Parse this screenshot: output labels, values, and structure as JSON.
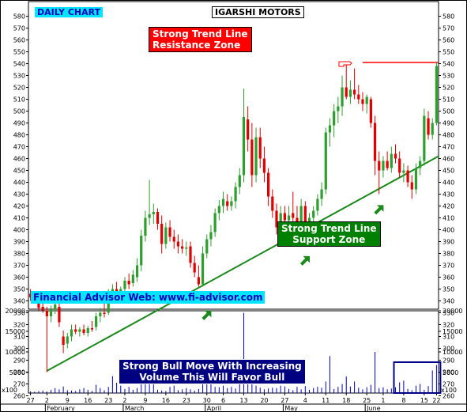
{
  "labels": {
    "daily_chart": "DAILY CHART",
    "title": "IGARSHI MOTORS",
    "resistance": "Strong Trend Line\nResistance Zone",
    "support": "Strong Trend Line\nSupport Zone",
    "website": "Financial Advisor Web: www.fi-advisor.com",
    "volume_note": "Strong Bull Move With Increasing\nVolume This Will Favor Bull",
    "volume_scale": "x100"
  },
  "colors": {
    "up": "#2e9e2e",
    "down": "#e00000",
    "trendline": "#1a8a1a",
    "resistance_line": "#ff0000",
    "volume": "#0000cc",
    "volume_box": "#00008b",
    "arrow": "#1a8a1a"
  },
  "chart_data": [
    {
      "type": "candlestick",
      "title": "IGARSHI MOTORS",
      "ylim": [
        255,
        580
      ],
      "y_ticks": [
        260,
        270,
        280,
        290,
        300,
        310,
        320,
        330,
        340,
        350,
        360,
        370,
        380,
        390,
        400,
        410,
        420,
        430,
        440,
        450,
        460,
        470,
        480,
        490,
        500,
        510,
        520,
        530,
        540,
        550,
        560,
        570,
        580
      ],
      "x_tick_labels": [
        "27",
        "2",
        "9",
        "16",
        "23",
        "2",
        "9",
        "16",
        "23",
        "30",
        "6",
        "13",
        "20",
        "27",
        "4",
        "11",
        "18",
        "25",
        "1",
        "8",
        "15",
        "22"
      ],
      "month_labels": [
        "February",
        "March",
        "April",
        "May",
        "June"
      ],
      "candles": [
        {
          "o": 346,
          "h": 350,
          "l": 340,
          "c": 343
        },
        {
          "o": 343,
          "h": 347,
          "l": 338,
          "c": 340
        },
        {
          "o": 340,
          "h": 342,
          "l": 332,
          "c": 334
        },
        {
          "o": 335,
          "h": 338,
          "l": 330,
          "c": 332
        },
        {
          "o": 332,
          "h": 335,
          "l": 280,
          "c": 327
        },
        {
          "o": 327,
          "h": 336,
          "l": 322,
          "c": 333
        },
        {
          "o": 333,
          "h": 340,
          "l": 329,
          "c": 337
        },
        {
          "o": 335,
          "h": 338,
          "l": 318,
          "c": 322
        },
        {
          "o": 310,
          "h": 315,
          "l": 296,
          "c": 303
        },
        {
          "o": 304,
          "h": 313,
          "l": 300,
          "c": 310
        },
        {
          "o": 310,
          "h": 320,
          "l": 306,
          "c": 316
        },
        {
          "o": 316,
          "h": 320,
          "l": 312,
          "c": 314
        },
        {
          "o": 314,
          "h": 318,
          "l": 310,
          "c": 316
        },
        {
          "o": 316,
          "h": 320,
          "l": 311,
          "c": 313
        },
        {
          "o": 313,
          "h": 319,
          "l": 310,
          "c": 317
        },
        {
          "o": 317,
          "h": 323,
          "l": 314,
          "c": 316
        },
        {
          "o": 318,
          "h": 330,
          "l": 315,
          "c": 327
        },
        {
          "o": 327,
          "h": 334,
          "l": 322,
          "c": 330
        },
        {
          "o": 330,
          "h": 338,
          "l": 326,
          "c": 329
        },
        {
          "o": 330,
          "h": 350,
          "l": 328,
          "c": 346
        },
        {
          "o": 346,
          "h": 354,
          "l": 340,
          "c": 350
        },
        {
          "o": 350,
          "h": 356,
          "l": 344,
          "c": 347
        },
        {
          "o": 347,
          "h": 352,
          "l": 342,
          "c": 350
        },
        {
          "o": 350,
          "h": 360,
          "l": 348,
          "c": 357
        },
        {
          "o": 357,
          "h": 363,
          "l": 350,
          "c": 354
        },
        {
          "o": 355,
          "h": 366,
          "l": 352,
          "c": 362
        },
        {
          "o": 360,
          "h": 376,
          "l": 356,
          "c": 370
        },
        {
          "o": 370,
          "h": 400,
          "l": 365,
          "c": 395
        },
        {
          "o": 395,
          "h": 416,
          "l": 390,
          "c": 410
        },
        {
          "o": 410,
          "h": 442,
          "l": 404,
          "c": 413
        },
        {
          "o": 413,
          "h": 422,
          "l": 405,
          "c": 415
        },
        {
          "o": 415,
          "h": 418,
          "l": 400,
          "c": 405
        },
        {
          "o": 405,
          "h": 412,
          "l": 380,
          "c": 388
        },
        {
          "o": 388,
          "h": 406,
          "l": 384,
          "c": 402
        },
        {
          "o": 402,
          "h": 408,
          "l": 390,
          "c": 394
        },
        {
          "o": 394,
          "h": 400,
          "l": 384,
          "c": 390
        },
        {
          "o": 390,
          "h": 396,
          "l": 380,
          "c": 386
        },
        {
          "o": 386,
          "h": 392,
          "l": 380,
          "c": 384
        },
        {
          "o": 384,
          "h": 390,
          "l": 378,
          "c": 385
        },
        {
          "o": 386,
          "h": 390,
          "l": 368,
          "c": 372
        },
        {
          "o": 372,
          "h": 378,
          "l": 360,
          "c": 364
        },
        {
          "o": 360,
          "h": 370,
          "l": 352,
          "c": 354
        },
        {
          "o": 354,
          "h": 386,
          "l": 352,
          "c": 380
        },
        {
          "o": 380,
          "h": 396,
          "l": 376,
          "c": 392
        },
        {
          "o": 392,
          "h": 404,
          "l": 386,
          "c": 398
        },
        {
          "o": 398,
          "h": 418,
          "l": 394,
          "c": 414
        },
        {
          "o": 414,
          "h": 425,
          "l": 408,
          "c": 420
        },
        {
          "o": 420,
          "h": 432,
          "l": 414,
          "c": 426
        },
        {
          "o": 424,
          "h": 430,
          "l": 416,
          "c": 420
        },
        {
          "o": 420,
          "h": 428,
          "l": 416,
          "c": 424
        },
        {
          "o": 424,
          "h": 440,
          "l": 418,
          "c": 436
        },
        {
          "o": 436,
          "h": 452,
          "l": 430,
          "c": 446
        },
        {
          "o": 446,
          "h": 519,
          "l": 440,
          "c": 495
        },
        {
          "o": 493,
          "h": 504,
          "l": 466,
          "c": 476
        },
        {
          "o": 476,
          "h": 490,
          "l": 436,
          "c": 446
        },
        {
          "o": 446,
          "h": 486,
          "l": 440,
          "c": 478
        },
        {
          "o": 478,
          "h": 486,
          "l": 452,
          "c": 460
        },
        {
          "o": 460,
          "h": 470,
          "l": 440,
          "c": 448
        },
        {
          "o": 448,
          "h": 452,
          "l": 420,
          "c": 428
        },
        {
          "o": 428,
          "h": 434,
          "l": 410,
          "c": 416
        },
        {
          "o": 416,
          "h": 422,
          "l": 396,
          "c": 402
        },
        {
          "o": 402,
          "h": 420,
          "l": 398,
          "c": 414
        },
        {
          "o": 414,
          "h": 420,
          "l": 404,
          "c": 408
        },
        {
          "o": 408,
          "h": 420,
          "l": 400,
          "c": 412
        },
        {
          "o": 414,
          "h": 432,
          "l": 404,
          "c": 410
        },
        {
          "o": 410,
          "h": 420,
          "l": 398,
          "c": 404
        },
        {
          "o": 404,
          "h": 426,
          "l": 400,
          "c": 420
        },
        {
          "o": 420,
          "h": 424,
          "l": 400,
          "c": 406
        },
        {
          "o": 406,
          "h": 414,
          "l": 398,
          "c": 410
        },
        {
          "o": 410,
          "h": 420,
          "l": 402,
          "c": 416
        },
        {
          "o": 416,
          "h": 430,
          "l": 412,
          "c": 426
        },
        {
          "o": 426,
          "h": 440,
          "l": 420,
          "c": 434
        },
        {
          "o": 434,
          "h": 486,
          "l": 430,
          "c": 482
        },
        {
          "o": 482,
          "h": 494,
          "l": 470,
          "c": 488
        },
        {
          "o": 488,
          "h": 506,
          "l": 478,
          "c": 500
        },
        {
          "o": 500,
          "h": 512,
          "l": 490,
          "c": 504
        },
        {
          "o": 504,
          "h": 530,
          "l": 496,
          "c": 520
        },
        {
          "o": 520,
          "h": 540,
          "l": 510,
          "c": 512
        },
        {
          "o": 512,
          "h": 526,
          "l": 506,
          "c": 518
        },
        {
          "o": 518,
          "h": 536,
          "l": 510,
          "c": 514
        },
        {
          "o": 514,
          "h": 522,
          "l": 506,
          "c": 510
        },
        {
          "o": 510,
          "h": 516,
          "l": 500,
          "c": 506
        },
        {
          "o": 506,
          "h": 514,
          "l": 498,
          "c": 512
        },
        {
          "o": 510,
          "h": 512,
          "l": 486,
          "c": 490
        },
        {
          "o": 490,
          "h": 496,
          "l": 446,
          "c": 458
        },
        {
          "o": 458,
          "h": 466,
          "l": 430,
          "c": 450
        },
        {
          "o": 450,
          "h": 462,
          "l": 444,
          "c": 458
        },
        {
          "o": 458,
          "h": 466,
          "l": 450,
          "c": 452
        },
        {
          "o": 452,
          "h": 470,
          "l": 448,
          "c": 464
        },
        {
          "o": 464,
          "h": 472,
          "l": 456,
          "c": 460
        },
        {
          "o": 460,
          "h": 466,
          "l": 444,
          "c": 448
        },
        {
          "o": 448,
          "h": 456,
          "l": 440,
          "c": 450
        },
        {
          "o": 450,
          "h": 454,
          "l": 436,
          "c": 440
        },
        {
          "o": 440,
          "h": 446,
          "l": 426,
          "c": 434
        },
        {
          "o": 434,
          "h": 456,
          "l": 430,
          "c": 452
        },
        {
          "o": 452,
          "h": 462,
          "l": 446,
          "c": 458
        },
        {
          "o": 458,
          "h": 502,
          "l": 454,
          "c": 496
        },
        {
          "o": 494,
          "h": 500,
          "l": 476,
          "c": 480
        },
        {
          "o": 480,
          "h": 494,
          "l": 476,
          "c": 490
        },
        {
          "o": 490,
          "h": 541,
          "l": 488,
          "c": 538
        }
      ],
      "support_trendline": {
        "from": [
          4,
          281
        ],
        "to": [
          99,
          462
        ]
      },
      "resistance_line": {
        "from": [
          81,
          541
        ],
        "to": [
          99,
          541
        ],
        "level": 541
      }
    },
    {
      "type": "bar",
      "title": "Volume",
      "unit_label": "x100",
      "ylim": [
        0,
        20000
      ],
      "y_ticks": [
        5000,
        10000,
        15000,
        20000
      ],
      "values": [
        400,
        300,
        500,
        600,
        350,
        800,
        1200,
        900,
        1600,
        700,
        600,
        500,
        900,
        1200,
        800,
        500,
        2000,
        1200,
        700,
        1500,
        4100,
        2500,
        1800,
        1000,
        1500,
        800,
        1200,
        3600,
        2800,
        3500,
        3000,
        800,
        600,
        500,
        1500,
        1800,
        700,
        900,
        1200,
        900,
        600,
        1000,
        3000,
        2600,
        2200,
        1500,
        1400,
        1800,
        1200,
        1500,
        1100,
        2600,
        19500,
        4800,
        2100,
        1800,
        1300,
        900,
        1100,
        1300,
        1200,
        1800,
        1600,
        1000,
        700,
        1500,
        900,
        1700,
        800,
        1200,
        1500,
        1300,
        2800,
        9000,
        1000,
        1500,
        2200,
        4000,
        1600,
        2800,
        1300,
        900,
        1400,
        2000,
        10000,
        1200,
        1400,
        900,
        1100,
        1400,
        2600,
        3000,
        1000,
        700,
        1800,
        2200,
        800,
        1700,
        5500,
        6800
      ]
    }
  ]
}
